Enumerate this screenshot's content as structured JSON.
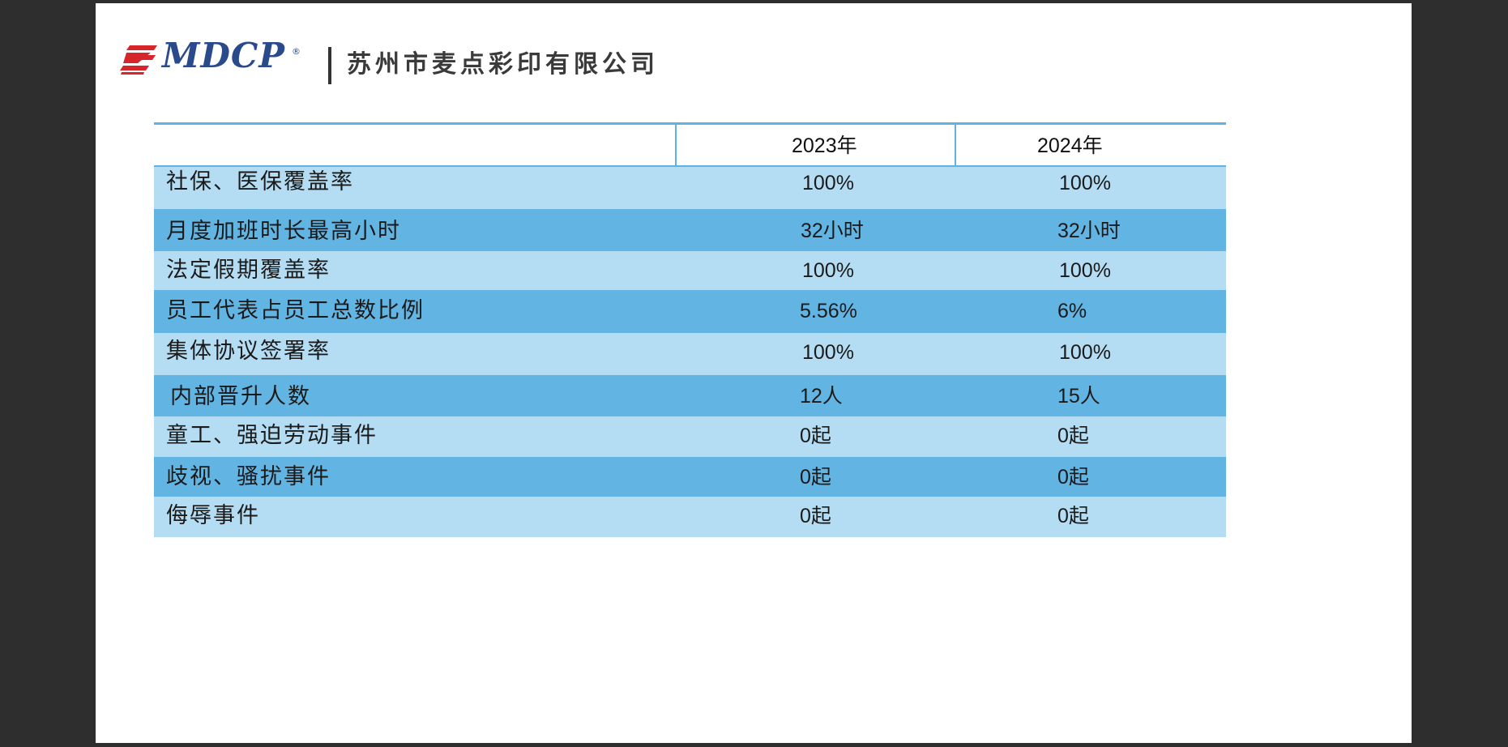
{
  "header": {
    "logo_text": "MDCP",
    "logo_reg": "®",
    "company_name": "苏州市麦点彩印有限公司"
  },
  "table": {
    "columns": [
      "",
      "2023年",
      "2024年"
    ],
    "rows": [
      {
        "label": "社保、医保覆盖率",
        "v2023": "100%",
        "v2024": "100%"
      },
      {
        "label": "月度加班时长最高小时",
        "v2023": "32小时",
        "v2024": "32小时"
      },
      {
        "label": "法定假期覆盖率",
        "v2023": "100%",
        "v2024": "100%"
      },
      {
        "label": "员工代表占员工总数比例",
        "v2023": "5.56%",
        "v2024": "6%"
      },
      {
        "label": "集体协议签署率",
        "v2023": "100%",
        "v2024": "100%"
      },
      {
        "label": "内部晋升人数",
        "v2023": "12人",
        "v2024": "15人"
      },
      {
        "label": "童工、强迫劳动事件",
        "v2023": "0起",
        "v2024": "0起"
      },
      {
        "label": "歧视、骚扰事件",
        "v2023": "0起",
        "v2024": "0起"
      },
      {
        "label": "侮辱事件",
        "v2023": "0起",
        "v2024": "0起"
      }
    ]
  },
  "colors": {
    "row_light": "#b4dcf2",
    "row_dark": "#62b4e3",
    "table_rule": "#5fb2e2",
    "logo_blue": "#2a4a8c",
    "logo_red": "#d6262b",
    "viewer_bg": "#2e2e2e"
  }
}
